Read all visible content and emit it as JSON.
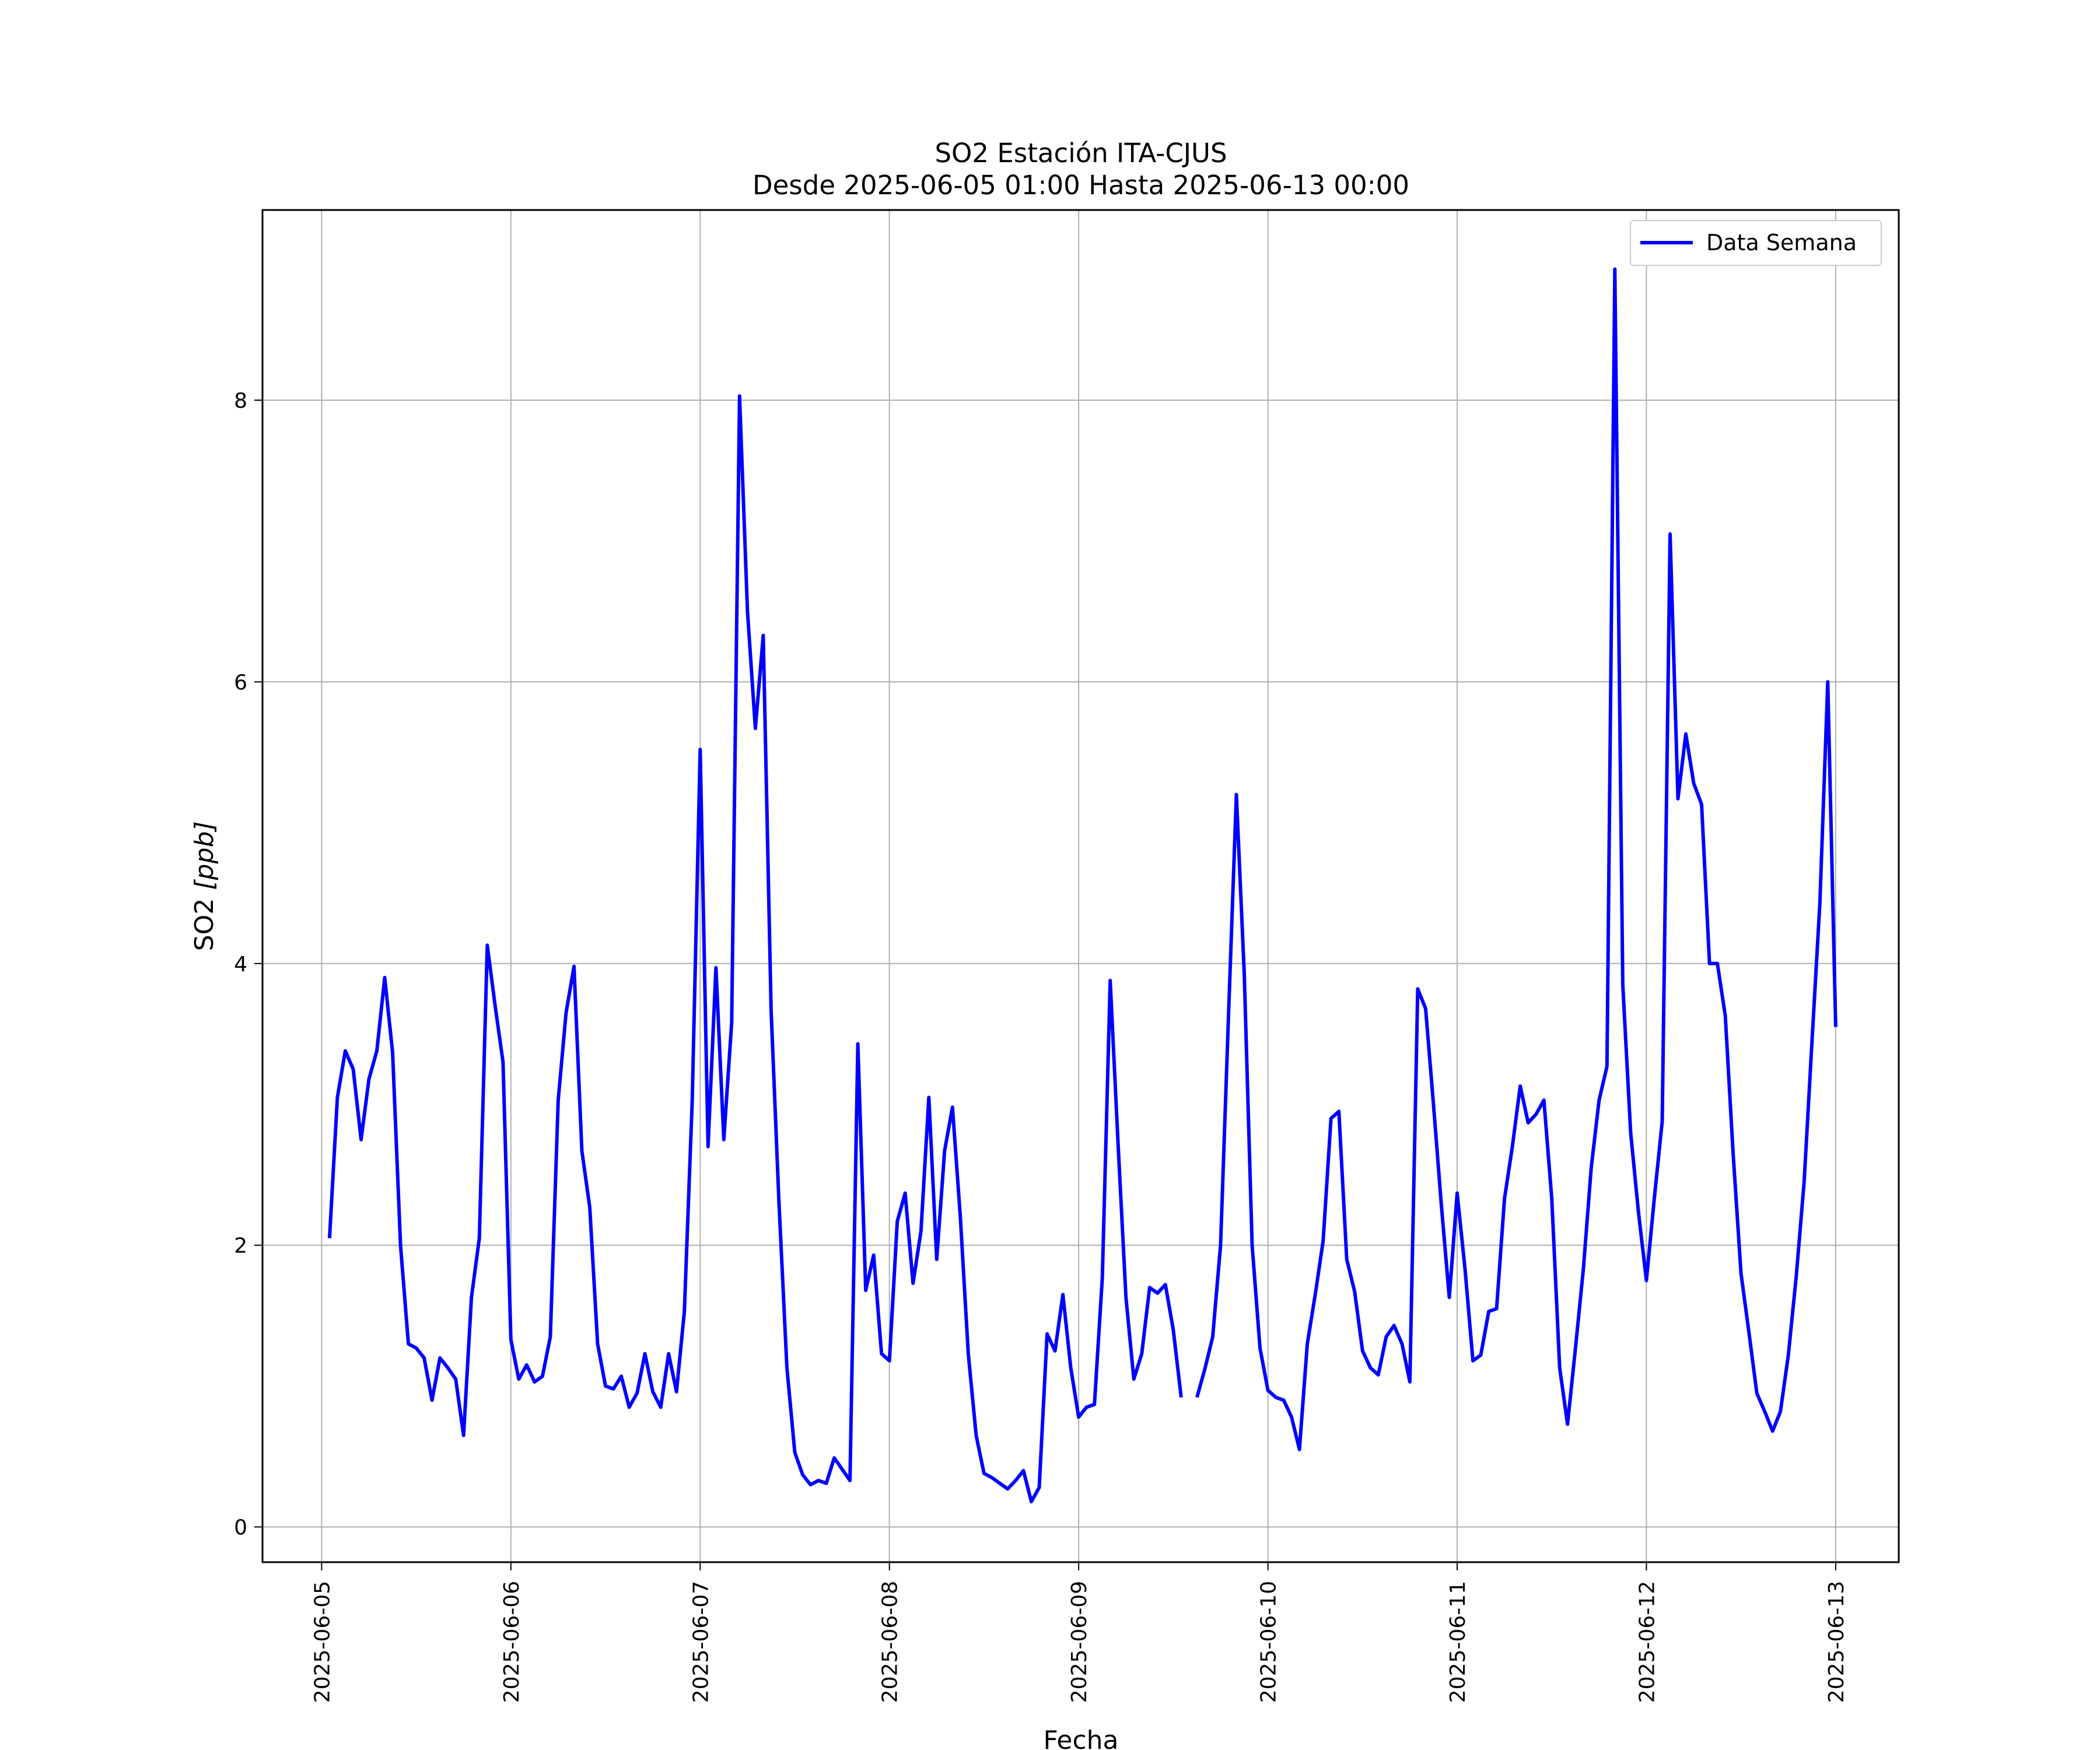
{
  "chart_data": {
    "type": "line",
    "title": "SO2 Estación ITA-CJUS",
    "subtitle": "Desde 2025-06-05 01:00 Hasta 2025-06-13 00:00",
    "xlabel": "Fecha",
    "ylabel_main": "SO2 ",
    "ylabel_unit": "[ppb]",
    "xlim": [
      "2025-06-04 16:30",
      "2025-06-13 08:00"
    ],
    "ylim": [
      -0.25,
      9.35
    ],
    "x_ticks": [
      "2025-06-05",
      "2025-06-06",
      "2025-06-07",
      "2025-06-08",
      "2025-06-09",
      "2025-06-10",
      "2025-06-11",
      "2025-06-12",
      "2025-06-13"
    ],
    "y_ticks": [
      0,
      2,
      4,
      6,
      8
    ],
    "grid": true,
    "legend_position": "top-right",
    "series": [
      {
        "name": "Data Semana",
        "color": "#0000ff",
        "start": "2025-06-05 01:00",
        "step_hours": 1,
        "values": [
          2.05,
          3.05,
          3.38,
          3.25,
          2.75,
          3.18,
          3.38,
          3.9,
          3.37,
          2.0,
          1.3,
          1.27,
          1.2,
          0.9,
          1.2,
          1.13,
          1.05,
          0.65,
          1.63,
          2.05,
          4.13,
          3.7,
          3.3,
          1.33,
          1.05,
          1.15,
          1.03,
          1.07,
          1.35,
          3.03,
          3.65,
          3.98,
          2.67,
          2.27,
          1.3,
          1.0,
          0.98,
          1.07,
          0.85,
          0.95,
          1.23,
          0.96,
          0.85,
          1.23,
          0.96,
          1.53,
          3.03,
          5.52,
          2.7,
          3.97,
          2.75,
          3.58,
          8.03,
          6.5,
          5.67,
          6.33,
          3.67,
          2.3,
          1.13,
          0.53,
          0.37,
          0.3,
          0.33,
          0.31,
          0.49,
          0.41,
          0.33,
          3.43,
          1.68,
          1.93,
          1.23,
          1.18,
          2.17,
          2.37,
          1.73,
          2.1,
          3.05,
          1.9,
          2.67,
          2.98,
          2.2,
          1.23,
          0.65,
          0.38,
          0.35,
          0.31,
          0.27,
          0.33,
          0.4,
          0.18,
          0.28,
          1.37,
          1.25,
          1.65,
          1.13,
          0.78,
          0.85,
          0.87,
          1.77,
          3.88,
          2.72,
          1.63,
          1.05,
          1.23,
          1.7,
          1.66,
          1.72,
          1.4,
          0.92,
          null,
          0.92,
          1.12,
          1.35,
          2.0,
          3.63,
          5.2,
          3.93,
          2.0,
          1.27,
          0.97,
          0.92,
          0.9,
          0.78,
          0.55,
          1.3,
          1.65,
          2.03,
          2.9,
          2.95,
          1.9,
          1.67,
          1.25,
          1.13,
          1.08,
          1.35,
          1.43,
          1.3,
          1.03,
          3.82,
          3.68,
          3.0,
          2.28,
          1.63,
          2.37,
          1.83,
          1.18,
          1.22,
          1.53,
          1.55,
          2.33,
          2.7,
          3.13,
          2.87,
          2.93,
          3.03,
          2.33,
          1.13,
          0.73,
          1.27,
          1.83,
          2.55,
          3.03,
          3.27,
          8.93,
          3.85,
          2.8,
          2.23,
          1.75,
          2.33,
          2.88,
          7.05,
          5.17,
          5.63,
          5.28,
          5.13,
          4.0,
          4.0,
          3.63,
          2.65,
          1.8,
          1.38,
          0.95,
          0.82,
          0.68,
          0.82,
          1.22,
          1.78,
          2.45,
          3.45,
          4.43,
          6.0,
          3.55
        ]
      }
    ]
  }
}
